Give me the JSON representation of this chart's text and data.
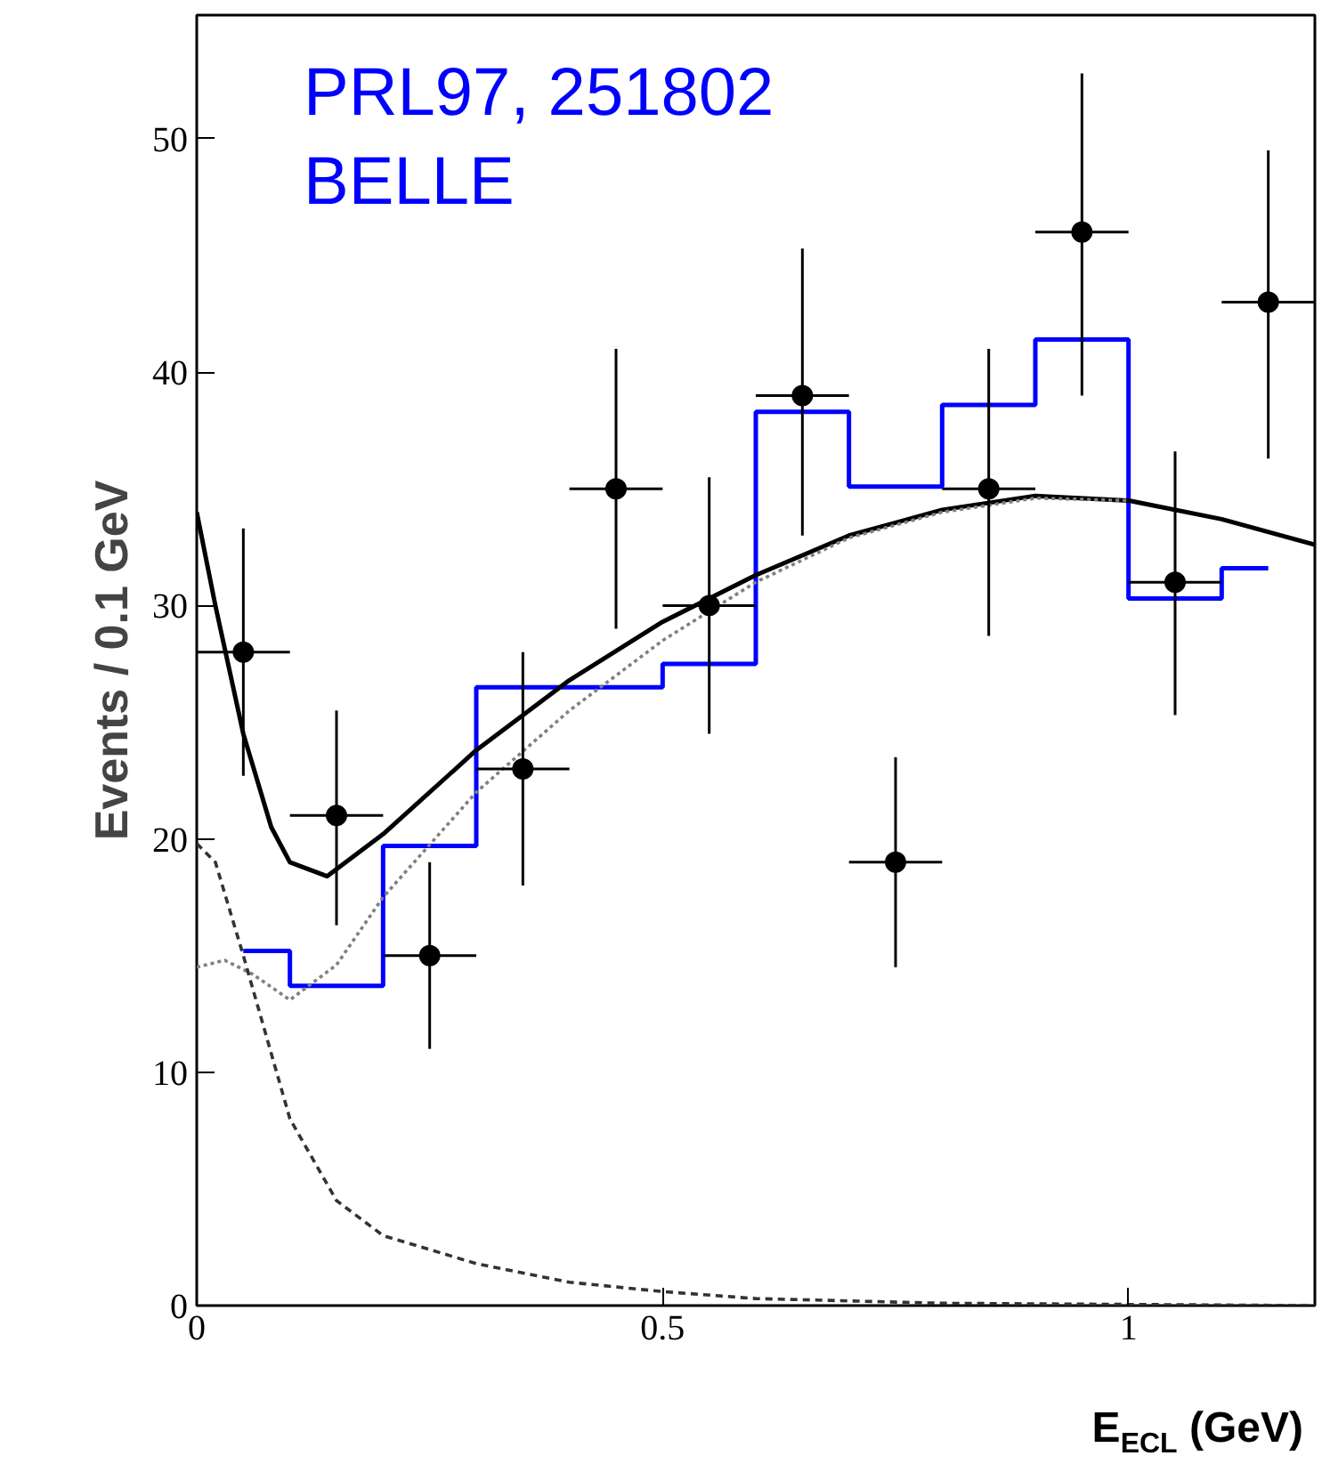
{
  "chart_data": {
    "type": "scatter",
    "xlabel": "E$_{ECL}$ (GeV)",
    "ylabel": "Events / 0.1 GeV",
    "xlim": [
      0,
      1.2
    ],
    "ylim": [
      0,
      55.3
    ],
    "xticks": [
      0,
      0.5,
      1
    ],
    "yticks": [
      0,
      10,
      20,
      30,
      40,
      50
    ],
    "grid": false,
    "annotations": [
      "PRL97, 251802",
      "BELLE"
    ],
    "series": [
      {
        "type": "step",
        "color": "#0000ff",
        "x": [
          0.05,
          0.15,
          0.25,
          0.35,
          0.45,
          0.55,
          0.65,
          0.75,
          0.85,
          0.95,
          1.05,
          1.15
        ],
        "values": [
          15.2,
          13.7,
          19.7,
          26.5,
          26.5,
          27.5,
          38.3,
          35.1,
          38.6,
          41.4,
          30.3,
          31.6
        ]
      },
      {
        "type": "line",
        "color": "#000000",
        "line_style": "solid",
        "x": [
          0,
          0.02,
          0.05,
          0.08,
          0.1,
          0.14,
          0.2,
          0.3,
          0.4,
          0.5,
          0.6,
          0.7,
          0.8,
          0.9,
          1.0,
          1.1,
          1.2
        ],
        "values": [
          34,
          30,
          24.5,
          20.5,
          19,
          18.4,
          20.2,
          23.8,
          26.8,
          29.3,
          31.3,
          33,
          34.1,
          34.7,
          34.5,
          33.7,
          32.6
        ]
      },
      {
        "type": "line",
        "color": "#808080",
        "line_style": "dotted",
        "x": [
          0,
          0.03,
          0.06,
          0.1,
          0.15,
          0.2,
          0.3,
          0.4,
          0.5,
          0.6,
          0.7,
          0.8,
          0.9,
          1.0
        ],
        "values": [
          14.5,
          14.8,
          14.2,
          13.1,
          14.6,
          17.5,
          22,
          25.5,
          28.5,
          31,
          32.9,
          34,
          34.6,
          34.5
        ]
      },
      {
        "type": "line",
        "color": "#333333",
        "line_style": "dashed",
        "x": [
          0,
          0.02,
          0.05,
          0.1,
          0.15,
          0.2,
          0.3,
          0.4,
          0.5,
          0.6,
          0.8,
          1.0,
          1.2
        ],
        "values": [
          19.8,
          19,
          15,
          8,
          4.5,
          3,
          1.8,
          1,
          0.6,
          0.3,
          0.1,
          0.05,
          0
        ]
      },
      {
        "color": "#000000",
        "marker": "circle",
        "x": [
          0.05,
          0.15,
          0.25,
          0.35,
          0.45,
          0.55,
          0.65,
          0.75,
          0.85,
          0.95,
          1.05,
          1.15
        ],
        "values": [
          28,
          21,
          15,
          23,
          35,
          30,
          39,
          19,
          35,
          46,
          31,
          43
        ],
        "errors": [
          [
            22.7,
            33.3
          ],
          [
            16.3,
            25.5
          ],
          [
            11,
            19
          ],
          [
            18,
            28
          ],
          [
            29,
            41
          ],
          [
            24.5,
            35.5
          ],
          [
            33,
            45.3
          ],
          [
            14.5,
            23.5
          ],
          [
            28.7,
            41
          ],
          [
            39,
            52.8
          ],
          [
            25.3,
            36.6
          ],
          [
            36.3,
            49.5
          ]
        ],
        "xerrors": [
          0.05,
          0.05,
          0.05,
          0.05,
          0.05,
          0.05,
          0.05,
          0.05,
          0.05,
          0.05,
          0.05,
          0.05
        ]
      }
    ]
  }
}
